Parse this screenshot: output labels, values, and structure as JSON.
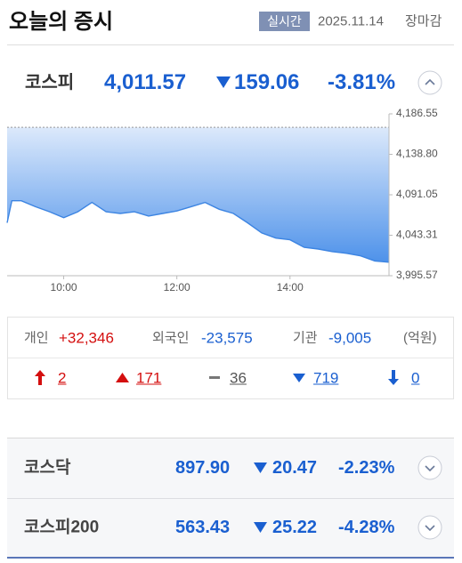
{
  "header": {
    "title": "오늘의 증시",
    "badge": "실시간",
    "date": "2025.11.14",
    "status": "장마감"
  },
  "main_index": {
    "name": "코스피",
    "value": "4,011.57",
    "change": "159.06",
    "change_rate": "-3.81%"
  },
  "chart": {
    "type": "area",
    "x": [
      540,
      545,
      555,
      570,
      585,
      600,
      615,
      630,
      645,
      660,
      675,
      690,
      705,
      720,
      735,
      750,
      765,
      780,
      795,
      810,
      825,
      840,
      855,
      870,
      885,
      900,
      915,
      930,
      945
    ],
    "values": [
      4058,
      4084,
      4084,
      4077,
      4071,
      4064,
      4071,
      4082,
      4071,
      4069,
      4071,
      4066,
      4069,
      4072,
      4077,
      4082,
      4074,
      4069,
      4058,
      4046,
      4040,
      4038,
      4029,
      4027,
      4024,
      4022,
      4019,
      4013,
      4011.57
    ],
    "xlim": [
      540,
      945
    ],
    "xticks": [
      {
        "value": 600,
        "label": "10:00"
      },
      {
        "value": 720,
        "label": "12:00"
      },
      {
        "value": 840,
        "label": "14:00"
      }
    ],
    "ylim": [
      3995.57,
      4186.55
    ],
    "yticks": [
      {
        "value": 4186.55,
        "label": "4,186.55"
      },
      {
        "value": 4138.8,
        "label": "4,138.80"
      },
      {
        "value": 4091.05,
        "label": "4,091.05"
      },
      {
        "value": 4043.31,
        "label": "4,043.31"
      },
      {
        "value": 3995.57,
        "label": "3,995.57"
      }
    ],
    "baseline": 4170.63,
    "color": "#3c84e2"
  },
  "investors": {
    "items": [
      {
        "name": "개인",
        "value": "+32,346"
      },
      {
        "name": "외국인",
        "value": "-23,575"
      },
      {
        "name": "기관",
        "value": "-9,005"
      }
    ],
    "unit": "(억원)"
  },
  "breadth": [
    "2",
    "171",
    "36",
    "719",
    "0"
  ],
  "other_indices": [
    {
      "name": "코스닥",
      "value": "897.90",
      "change": "20.47",
      "change_rate": "-2.23%"
    },
    {
      "name": "코스피200",
      "value": "563.43",
      "change": "25.22",
      "change_rate": "-4.28%"
    }
  ]
}
